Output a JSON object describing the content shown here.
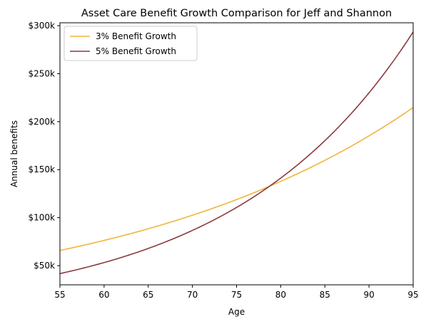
{
  "chart_data": {
    "type": "line",
    "title": "Asset Care Benefit Growth Comparison for Jeff and Shannon",
    "xlabel": "Age",
    "ylabel": "Annual benefits",
    "xlim": [
      55,
      95
    ],
    "ylim": [
      30000,
      303000
    ],
    "x_ticks": [
      55,
      60,
      65,
      70,
      75,
      80,
      85,
      90,
      95
    ],
    "y_ticks": [
      50000,
      100000,
      150000,
      200000,
      250000,
      300000
    ],
    "y_tick_labels": [
      "$50k",
      "$100k",
      "$150k",
      "$200k",
      "$250k",
      "$300k"
    ],
    "grid": false,
    "legend_position": "top-left",
    "x": [
      55,
      60,
      65,
      70,
      75,
      80,
      85,
      90,
      95
    ],
    "series": [
      {
        "name": "3% Benefit Growth",
        "color": "#f0b43c",
        "values": [
          65800,
          76300,
          88400,
          102500,
          118800,
          137800,
          159700,
          185200,
          214700
        ]
      },
      {
        "name": "5% Benefit Growth",
        "color": "#8b3a3e",
        "values": [
          41700,
          53200,
          67900,
          86700,
          110600,
          141200,
          180200,
          230000,
          293500
        ]
      }
    ]
  }
}
